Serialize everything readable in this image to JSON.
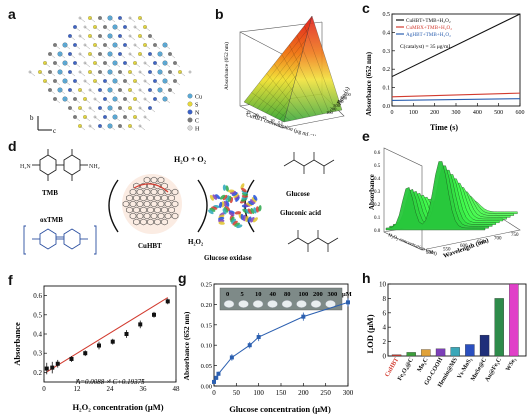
{
  "panel_labels": {
    "a": "a",
    "b": "b",
    "c": "c",
    "d": "d",
    "e": "e",
    "f": "f",
    "g": "g",
    "h": "h"
  },
  "panel_a": {
    "legend": [
      "Cu",
      "S",
      "N",
      "C",
      "H"
    ],
    "legend_colors": [
      "#5aa9d6",
      "#e6d83a",
      "#3a62c8",
      "#7a7a7a",
      "#d8d8d8"
    ],
    "axis": {
      "b": "b",
      "c": "c"
    }
  },
  "panel_b": {
    "zlabel": "Absorbance (652 nm)",
    "xlabel": "CuHBT concentration (μg mL⁻¹)",
    "ylabel": "Time (s)",
    "x_ticks": [
      "25",
      "20",
      "15",
      "10",
      "5"
    ],
    "y_ticks": [
      "100",
      "200",
      "300",
      "400",
      "500",
      "600"
    ]
  },
  "panel_d": {
    "tmb": "TMB",
    "oxtmb": "oxTMB",
    "h2o_o2": "H₂O + O₂",
    "h2o2": "H₂O₂",
    "cuhbt": "CuHBT",
    "gox": "Glucose oxidase",
    "glucose": "Glucose",
    "gluconic": "Gluconic acid"
  },
  "panel_e": {
    "zlabel": "Absorbance",
    "xlabel": "Wavelength (nm)",
    "ylabel": "H₂O₂ concentration (mM)",
    "z_ticks": [
      "0.0",
      "0.1",
      "0.2",
      "0.3",
      "0.4",
      "0.5",
      "0.6"
    ],
    "x_ticks": [
      "500",
      "550",
      "600",
      "650",
      "700",
      "750"
    ]
  },
  "colors": {
    "red_line": "#d23b2f",
    "blue_line": "#2b5fb0",
    "black": "#111111",
    "bar_navy": "#1f2f7a"
  },
  "chart_data": [
    {
      "panel": "c",
      "type": "line",
      "xlabel": "Time (s)",
      "ylabel": "Absorbance (652 nm)",
      "xlim": [
        0,
        600
      ],
      "ylim": [
        0.0,
        0.5
      ],
      "x_ticks": [
        0,
        100,
        200,
        300,
        400,
        500,
        600
      ],
      "y_ticks": [
        0.0,
        0.1,
        0.2,
        0.3,
        0.4,
        0.5
      ],
      "annotation": "C(catalyst) = 35 μg/mL",
      "series": [
        {
          "name": "CuHBT+TMB+H₂O₂",
          "color": "#111111",
          "x": [
            0,
            600
          ],
          "y": [
            0.16,
            0.5
          ]
        },
        {
          "name": "CuMBX+TMB+H₂O₂",
          "color": "#d23b2f",
          "x": [
            0,
            600
          ],
          "y": [
            0.05,
            0.07
          ]
        },
        {
          "name": "AgHBT+TMB+H₂O₂",
          "color": "#2b5fb0",
          "x": [
            0,
            600
          ],
          "y": [
            0.03,
            0.04
          ]
        }
      ]
    },
    {
      "panel": "f",
      "type": "scatter",
      "xlabel": "H₂O₂ concentration (μM)",
      "ylabel": "Absorbance",
      "xlim": [
        0,
        48
      ],
      "ylim": [
        0.15,
        0.65
      ],
      "x_ticks": [
        0,
        12,
        24,
        36,
        48
      ],
      "y_ticks": [
        0.2,
        0.3,
        0.4,
        0.5,
        0.6
      ],
      "fit": "A=0.0088 × C+0.19375",
      "x": [
        1,
        3,
        5,
        10,
        15,
        20,
        25,
        30,
        35,
        40,
        45
      ],
      "y": [
        0.22,
        0.225,
        0.245,
        0.27,
        0.3,
        0.34,
        0.36,
        0.4,
        0.45,
        0.5,
        0.57
      ],
      "err": [
        0.03,
        0.03,
        0.02,
        0.015,
        0.015,
        0.02,
        0.015,
        0.02,
        0.02,
        0.015,
        0.015
      ]
    },
    {
      "panel": "g",
      "type": "scatter",
      "xlabel": "Glucose concentration (μM)",
      "ylabel": "Absorbance (652 nm)",
      "xlim": [
        0,
        300
      ],
      "ylim": [
        0.0,
        0.25
      ],
      "x_ticks": [
        0,
        50,
        100,
        150,
        200,
        250,
        300
      ],
      "y_ticks": [
        0.0,
        0.05,
        0.1,
        0.15,
        0.2,
        0.25
      ],
      "inset_labels": [
        "0",
        "5",
        "10",
        "40",
        "80",
        "100",
        "200",
        "300",
        "μM"
      ],
      "x": [
        0,
        5,
        10,
        40,
        80,
        100,
        200,
        300
      ],
      "y": [
        0.01,
        0.02,
        0.03,
        0.07,
        0.1,
        0.12,
        0.17,
        0.205
      ],
      "err": [
        0.005,
        0.005,
        0.005,
        0.008,
        0.008,
        0.01,
        0.01,
        0.01
      ]
    },
    {
      "panel": "h",
      "type": "bar",
      "ylabel": "LOD (μM)",
      "ylim": [
        0,
        10
      ],
      "y_ticks": [
        0,
        2,
        4,
        6,
        8,
        10
      ],
      "categories": [
        "CuHBT",
        "Fe₃O₄@C",
        "Mo₂C",
        "GO-COOH",
        "Hemin@MS",
        "Vs-MoS₂",
        "MnSe@C",
        "Au@Fe₃C",
        "WSe₂"
      ],
      "values": [
        0.18,
        0.5,
        0.9,
        1.0,
        1.2,
        1.6,
        2.9,
        8.0,
        10.0
      ],
      "colors": [
        "#d23b2f",
        "#3b9f3b",
        "#e0a23a",
        "#7b3fb8",
        "#3ba7b8",
        "#2a4fbf",
        "#1f2f7a",
        "#2e8b4a",
        "#e040c8"
      ]
    }
  ]
}
